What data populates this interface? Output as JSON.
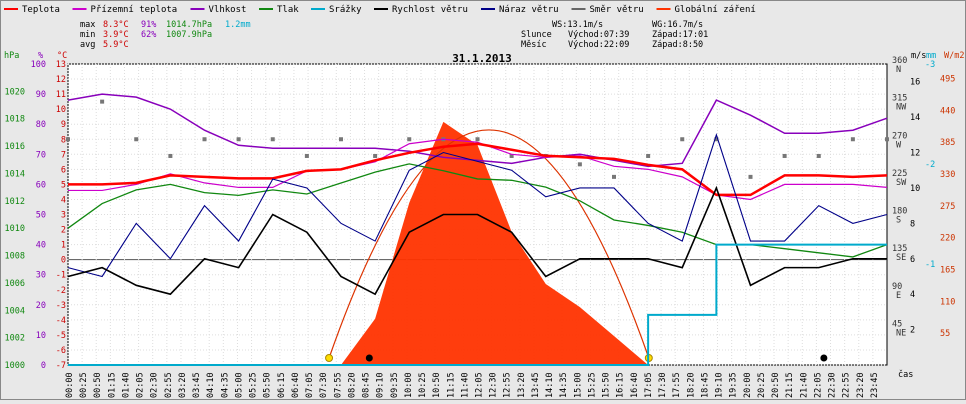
{
  "header": {
    "date_title": "31.1.2013",
    "legend": [
      {
        "label": "Teplota",
        "color": "#ff0000"
      },
      {
        "label": "Přízemní teplota",
        "color": "#cc00cc"
      },
      {
        "label": "Vlhkost",
        "color": "#8800bb"
      },
      {
        "label": "Tlak",
        "color": "#118811"
      },
      {
        "label": "Srážky",
        "color": "#00aacc"
      },
      {
        "label": "Rychlost větru",
        "color": "#000000"
      },
      {
        "label": "Náraz větru",
        "color": "#000088"
      },
      {
        "label": "Směr větru",
        "color": "#666666"
      },
      {
        "label": "Globální záření",
        "color": "#ff3300"
      }
    ],
    "stats": {
      "max_label": "max",
      "max_temp": "8.3°C",
      "max_hum": "91%",
      "max_press": "1014.7hPa",
      "max_rain": "1.2mm",
      "min_label": "min",
      "min_temp": "3.9°C",
      "min_hum": "62%",
      "min_press": "1007.9hPa",
      "avg_label": "avg",
      "avg_temp": "5.9°C"
    },
    "wind": {
      "ws": "WS:13.1m/s",
      "wg": "WG:16.7m/s"
    },
    "sun": {
      "label": "Slunce",
      "rise": "Východ:07:39",
      "set": "Západ:17:01"
    },
    "moon": {
      "label": "Měsíc",
      "rise": "Východ:22:09",
      "set": "Západ:8:50"
    }
  },
  "axes": {
    "left_units": {
      "hpa": "hPa",
      "pct": "%",
      "degc": "°C"
    },
    "right_units": {
      "ms": "m/s",
      "mm": "mm",
      "wm2": "W/m2"
    },
    "time_label": "čas",
    "hpa_ticks": [
      "1020",
      "1018",
      "1016",
      "1014",
      "1012",
      "1010",
      "1008",
      "1006",
      "1004",
      "1002",
      "1000"
    ],
    "pct_ticks": [
      "100",
      "90",
      "80",
      "70",
      "60",
      "50",
      "40",
      "30",
      "20",
      "10",
      "0"
    ],
    "degc_ticks": [
      "13",
      "12",
      "11",
      "10",
      "9",
      "8",
      "7",
      "6",
      "5",
      "4",
      "3",
      "2",
      "1",
      "0",
      "-1",
      "-2",
      "-3",
      "-4",
      "-5",
      "-6",
      "-7"
    ],
    "dir_ticks": [
      "360",
      "315",
      "270",
      "225",
      "180",
      "135",
      "90",
      "45"
    ],
    "dir_labels": [
      "N",
      "NW",
      "W",
      "SW",
      "S",
      "SE",
      "E",
      "NE"
    ],
    "ms_ticks": [
      "16",
      "14",
      "12",
      "10",
      "8",
      "6",
      "4",
      "2"
    ],
    "mm_ticks": [
      "-3",
      "-2",
      "-1"
    ],
    "wm2_ticks": [
      "495",
      "440",
      "385",
      "330",
      "275",
      "220",
      "165",
      "110",
      "55"
    ],
    "time_ticks": [
      "00:00",
      "00:25",
      "00:50",
      "01:15",
      "01:40",
      "02:05",
      "02:30",
      "02:55",
      "03:20",
      "03:45",
      "04:10",
      "04:35",
      "05:00",
      "05:25",
      "05:50",
      "06:15",
      "06:40",
      "07:05",
      "07:30",
      "07:55",
      "08:20",
      "08:45",
      "09:10",
      "09:35",
      "10:00",
      "10:25",
      "10:50",
      "11:15",
      "11:40",
      "12:05",
      "12:30",
      "12:55",
      "13:20",
      "13:45",
      "14:10",
      "14:35",
      "15:00",
      "15:25",
      "15:50",
      "16:15",
      "16:40",
      "17:05",
      "17:30",
      "17:55",
      "18:20",
      "18:45",
      "19:10",
      "19:35",
      "20:00",
      "20:25",
      "20:50",
      "21:15",
      "21:40",
      "22:05",
      "22:30",
      "22:55",
      "23:20",
      "23:45"
    ]
  },
  "chart_data": {
    "type": "line",
    "title": "31.1.2013",
    "x_hours": [
      0,
      1,
      2,
      3,
      4,
      5,
      6,
      7,
      8,
      9,
      10,
      11,
      12,
      13,
      14,
      15,
      16,
      17,
      18,
      19,
      20,
      21,
      22,
      23,
      24
    ],
    "series": [
      {
        "name": "Teplota",
        "unit": "°C",
        "values": [
          5.0,
          5.0,
          5.1,
          5.6,
          5.5,
          5.4,
          5.4,
          5.9,
          6.0,
          6.6,
          7.1,
          7.5,
          7.7,
          7.3,
          6.9,
          6.8,
          6.7,
          6.3,
          6.0,
          4.3,
          4.3,
          5.6,
          5.6,
          5.5,
          5.6
        ]
      },
      {
        "name": "Přízemní teplota",
        "unit": "°C",
        "values": [
          4.6,
          4.6,
          5.0,
          5.7,
          5.1,
          4.8,
          4.8,
          5.9,
          6.0,
          6.5,
          7.7,
          8.0,
          7.8,
          7.0,
          6.8,
          6.9,
          6.2,
          6.0,
          5.5,
          4.3,
          4.0,
          5.0,
          5.0,
          5.0,
          4.8
        ]
      },
      {
        "name": "Vlhkost",
        "unit": "%",
        "values": [
          88,
          90,
          89,
          85,
          78,
          73,
          72,
          72,
          72,
          72,
          71,
          69,
          68,
          67,
          69,
          70,
          68,
          66,
          67,
          88,
          83,
          77,
          77,
          78,
          82
        ]
      },
      {
        "name": "Tlak",
        "unit": "hPa",
        "values": [
          1010,
          1011.8,
          1012.8,
          1013.2,
          1012.6,
          1012.4,
          1012.8,
          1012.5,
          1013.3,
          1014.1,
          1014.7,
          1014.2,
          1013.6,
          1013.5,
          1013.0,
          1012.0,
          1010.6,
          1010.2,
          1009.7,
          1008.8,
          1008.8,
          1008.5,
          1008.2,
          1007.9,
          1008.8
        ]
      },
      {
        "name": "Srážky",
        "unit": "mm",
        "values": [
          0,
          0,
          0,
          0,
          0,
          0,
          0,
          0,
          0,
          0,
          0,
          0,
          0,
          0,
          0,
          0,
          0,
          0.5,
          0.5,
          1.2,
          1.2,
          1.2,
          1.2,
          1.2,
          1.2
        ]
      },
      {
        "name": "Rychlost větru",
        "unit": "m/s",
        "values": [
          5.0,
          5.5,
          4.5,
          4.0,
          6.0,
          5.5,
          8.5,
          7.5,
          5.0,
          4.0,
          7.5,
          8.5,
          8.5,
          7.5,
          5.0,
          6.0,
          6.0,
          6.0,
          5.5,
          10.0,
          4.5,
          5.5,
          5.5,
          6.0,
          6.0
        ]
      },
      {
        "name": "Náraz větru",
        "unit": "m/s",
        "values": [
          5.5,
          5.0,
          8.0,
          6.0,
          9.0,
          7.0,
          10.5,
          10.0,
          8.0,
          7.0,
          11.0,
          12.0,
          11.5,
          11.0,
          9.5,
          10.0,
          10.0,
          8.0,
          7.0,
          13.0,
          7.0,
          7.0,
          9.0,
          8.0,
          8.5
        ]
      },
      {
        "name": "Globální záření",
        "unit": "W/m2",
        "values": [
          0,
          0,
          0,
          0,
          0,
          0,
          0,
          0,
          0,
          80,
          280,
          420,
          380,
          230,
          140,
          100,
          50,
          0,
          0,
          0,
          0,
          0,
          0,
          0,
          0
        ]
      }
    ],
    "wind_direction_deg": [
      270,
      315,
      270,
      250,
      270,
      270,
      270,
      250,
      270,
      250,
      270,
      270,
      270,
      250,
      250,
      240,
      225,
      250,
      270,
      270,
      225,
      250,
      250,
      270,
      270
    ],
    "axis_ranges": {
      "hpa": [
        1000,
        1022
      ],
      "pct": [
        0,
        100
      ],
      "degc": [
        -7,
        13
      ],
      "ms": [
        0,
        17
      ],
      "wm2": [
        0,
        520
      ],
      "dir": [
        0,
        360
      ]
    }
  }
}
